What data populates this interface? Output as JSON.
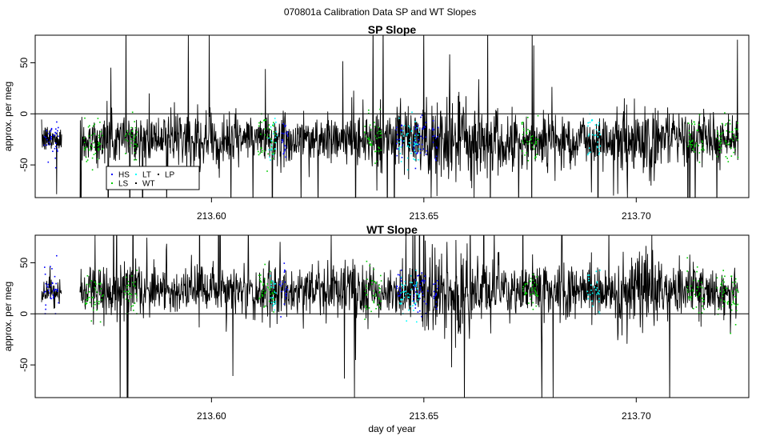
{
  "figure": {
    "title": "070801a   Calibration Data SP and WT Slopes"
  },
  "chart_data": [
    {
      "type": "line",
      "title": "SP Slope",
      "xlabel": "",
      "ylabel": "approx. per meg",
      "xlim": [
        213.5585,
        213.7265
      ],
      "ylim": [
        -82,
        77
      ],
      "x_ticks": [
        213.6,
        213.65,
        213.7
      ],
      "x_tick_labels": [
        "213.60",
        "213.65",
        "213.70"
      ],
      "y_ticks": [
        -50,
        0,
        50
      ],
      "y_tick_labels": [
        "-50",
        "0",
        "50"
      ],
      "reference_line_y": 0,
      "baseline_mean": -25,
      "gap": [
        213.5648,
        213.569
      ],
      "data_range_x": [
        213.56,
        213.724
      ],
      "legend": {
        "position": "lower-left",
        "entries": [
          {
            "label": "HS",
            "color": "#0000ff"
          },
          {
            "label": "LT",
            "color": "#00ffff"
          },
          {
            "label": "LP",
            "color": "#000000"
          },
          {
            "label": "LS",
            "color": "#00cc00"
          },
          {
            "label": "WT",
            "color": "#000000"
          }
        ]
      },
      "series": [
        {
          "label": "WT",
          "color": "#000000",
          "style": "line"
        },
        {
          "label": "HS",
          "color": "#0000ff",
          "style": "points",
          "x_ranges": [
            [
              213.5605,
              213.564
            ],
            [
              213.616,
              213.618
            ],
            [
              213.6435,
              213.645
            ],
            [
              213.6475,
              213.651
            ],
            [
              213.652,
              213.6535
            ]
          ]
        },
        {
          "label": "LS",
          "color": "#00cc00",
          "style": "points",
          "x_ranges": [
            [
              213.57,
              213.5745
            ],
            [
              213.5795,
              213.5825
            ],
            [
              213.611,
              213.615
            ],
            [
              213.636,
              213.64
            ],
            [
              213.673,
              213.677
            ],
            [
              213.712,
              213.716
            ],
            [
              213.719,
              213.724
            ]
          ]
        },
        {
          "label": "LT",
          "color": "#00ffff",
          "style": "points",
          "x_ranges": [
            [
              213.6135,
              213.6155
            ],
            [
              213.644,
              213.649
            ],
            [
              213.6885,
              213.6915
            ]
          ]
        }
      ]
    },
    {
      "type": "line",
      "title": "WT Slope",
      "xlabel": "day of year",
      "ylabel": "approx. per meg",
      "xlim": [
        213.5585,
        213.7265
      ],
      "ylim": [
        -82,
        77
      ],
      "x_ticks": [
        213.6,
        213.65,
        213.7
      ],
      "x_tick_labels": [
        "213.60",
        "213.65",
        "213.70"
      ],
      "y_ticks": [
        -50,
        0,
        50
      ],
      "y_tick_labels": [
        "-50",
        "0",
        "50"
      ],
      "reference_line_y": 0,
      "baseline_mean": 22,
      "gap": [
        213.5648,
        213.569
      ],
      "data_range_x": [
        213.56,
        213.724
      ],
      "series": [
        {
          "label": "WT",
          "color": "#000000",
          "style": "line"
        },
        {
          "label": "HS",
          "color": "#0000ff",
          "style": "points",
          "x_ranges": [
            [
              213.5605,
              213.564
            ],
            [
              213.616,
              213.618
            ],
            [
              213.6435,
              213.645
            ],
            [
              213.6475,
              213.651
            ],
            [
              213.652,
              213.6535
            ]
          ]
        },
        {
          "label": "LS",
          "color": "#00cc00",
          "style": "points",
          "x_ranges": [
            [
              213.57,
              213.5745
            ],
            [
              213.5795,
              213.5825
            ],
            [
              213.611,
              213.615
            ],
            [
              213.636,
              213.64
            ],
            [
              213.673,
              213.677
            ],
            [
              213.712,
              213.716
            ],
            [
              213.719,
              213.724
            ]
          ]
        },
        {
          "label": "LT",
          "color": "#00ffff",
          "style": "points",
          "x_ranges": [
            [
              213.6135,
              213.6155
            ],
            [
              213.644,
              213.649
            ],
            [
              213.6885,
              213.6915
            ]
          ]
        }
      ]
    }
  ]
}
